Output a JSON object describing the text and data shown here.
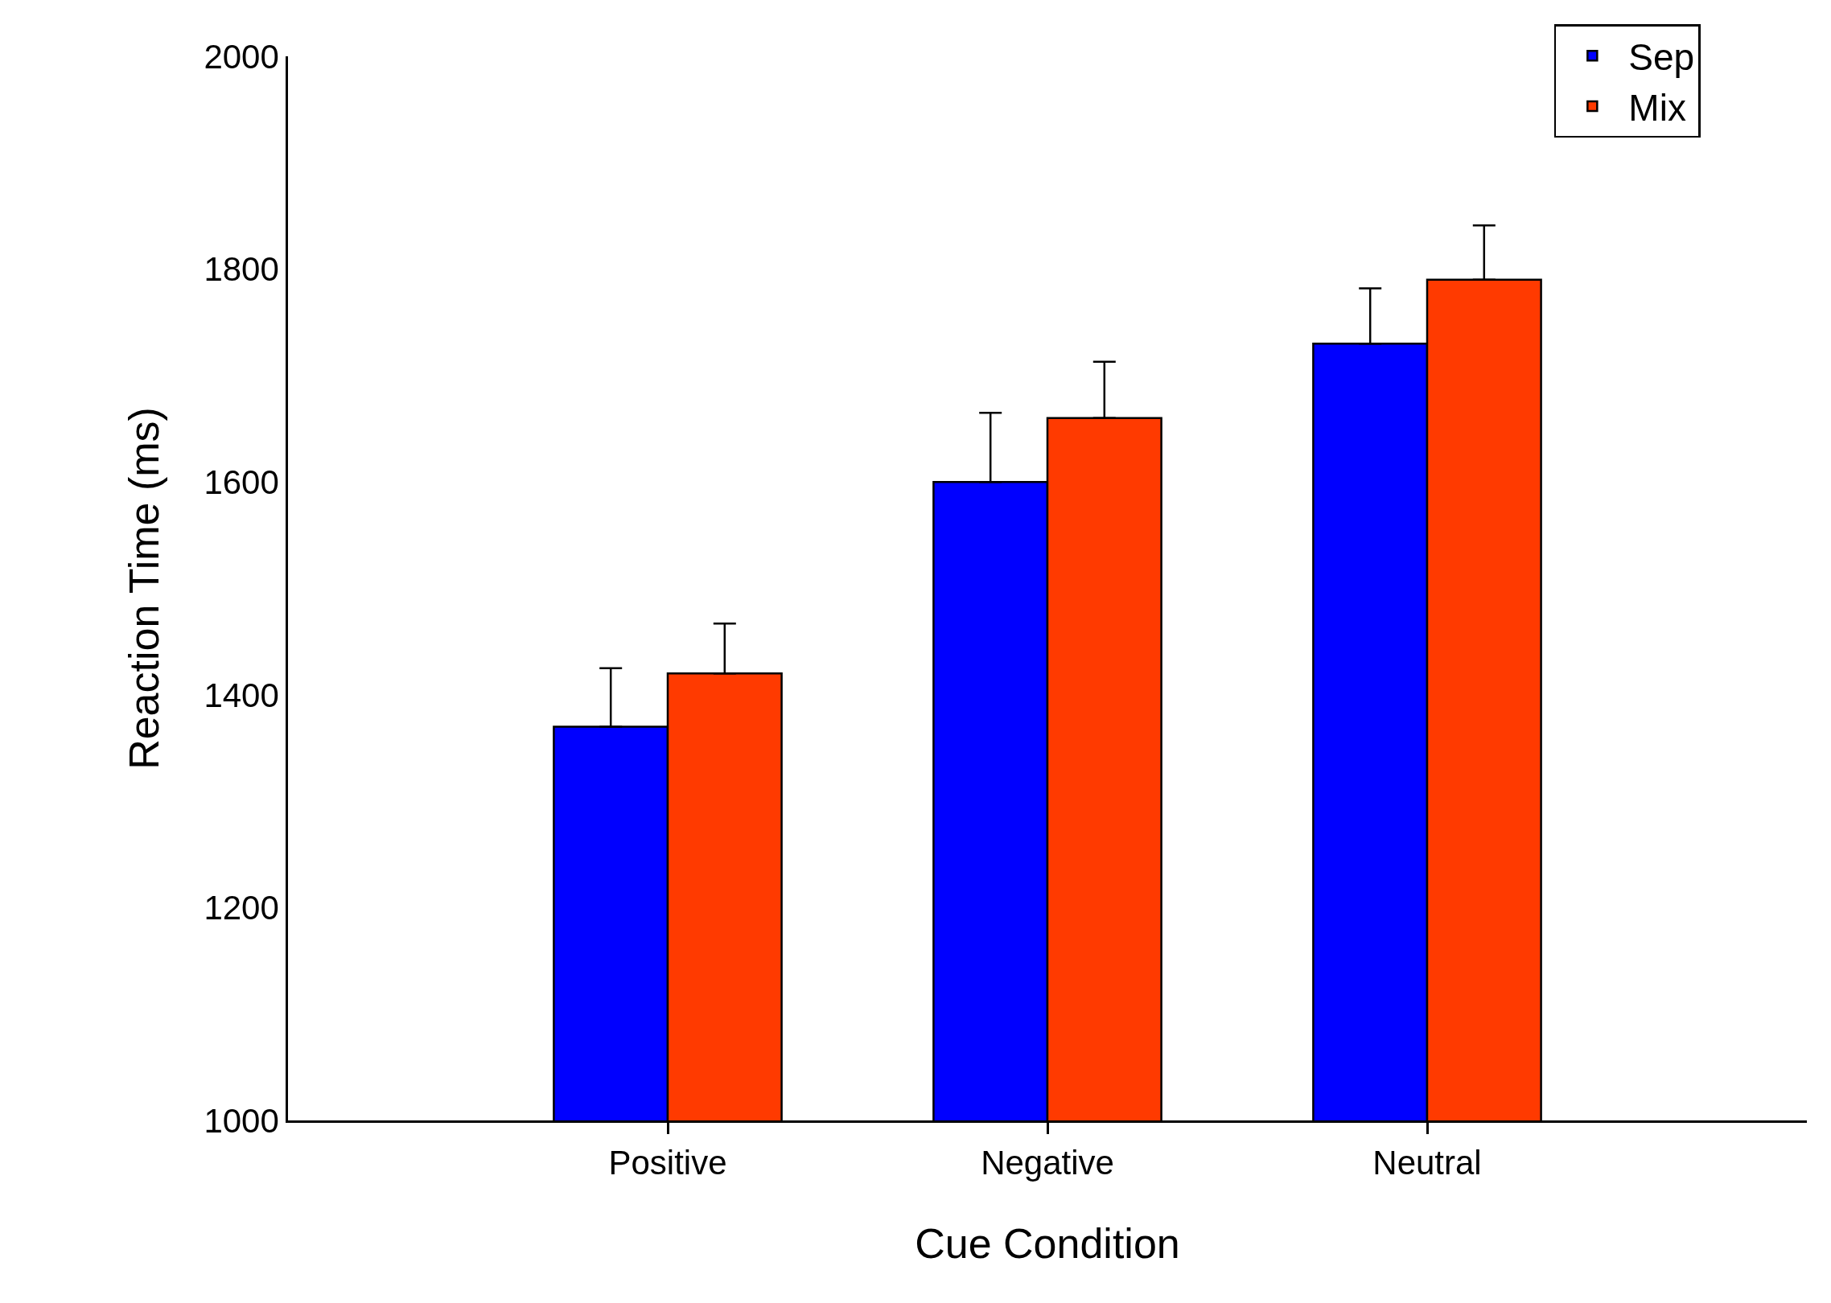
{
  "chart_data": {
    "type": "bar",
    "xlabel": "Cue Condition",
    "ylabel": "Reaction Time (ms)",
    "categories": [
      "Positive",
      "Negative",
      "Neutral"
    ],
    "series": [
      {
        "name": "Sep",
        "color": "#0000ff",
        "values": [
          1370,
          1600,
          1730
        ],
        "errors": [
          [
            1370,
            1425
          ],
          [
            1600,
            1665
          ],
          [
            1730,
            1782
          ]
        ]
      },
      {
        "name": "Mix",
        "color": "#ff3a00",
        "values": [
          1420,
          1660,
          1790
        ],
        "errors": [
          [
            1420,
            1467
          ],
          [
            1660,
            1713
          ],
          [
            1790,
            1841
          ]
        ]
      }
    ],
    "ylim": [
      1000,
      2000
    ],
    "yticks": [
      1000,
      1200,
      1400,
      1600,
      1800,
      2000
    ],
    "legend": "top right"
  }
}
